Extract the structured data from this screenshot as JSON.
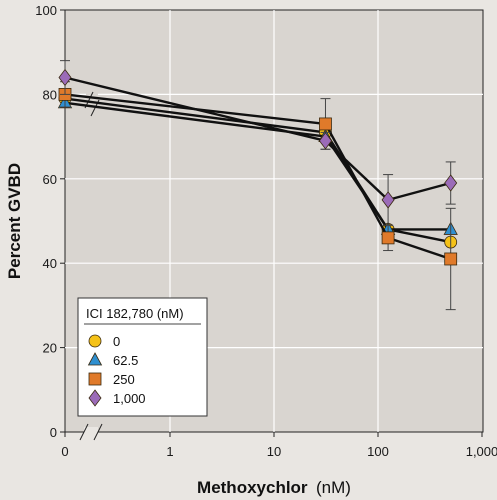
{
  "chart_data": {
    "type": "line",
    "x_axis": {
      "title": "Methoxychlor",
      "unit": "(nM)",
      "scale": "log with break at 0",
      "tick_labels": [
        "0",
        "1",
        "10",
        "100",
        "1,000"
      ],
      "tick_values": [
        0,
        1,
        10,
        100,
        1000
      ]
    },
    "y_axis": {
      "title": "Percent GVBD",
      "range": [
        0,
        100
      ],
      "tick_labels": [
        "0",
        "20",
        "40",
        "60",
        "80",
        "100"
      ],
      "tick_values": [
        0,
        20,
        40,
        60,
        80,
        100
      ]
    },
    "grid": true,
    "legend": {
      "title": "ICI 182,780 (nM)",
      "placement": "bottom-left"
    },
    "x": [
      0,
      31.25,
      125,
      500
    ],
    "series": [
      {
        "name": "0",
        "marker": "circle",
        "color": "#f5c218",
        "values": [
          79,
          71,
          48,
          45
        ],
        "errors": [
          0,
          0,
          0,
          0
        ]
      },
      {
        "name": "62.5",
        "marker": "triangle",
        "color": "#2f8fd0",
        "values": [
          78,
          70,
          48,
          48
        ],
        "errors": [
          0,
          0,
          0,
          0
        ]
      },
      {
        "name": "250",
        "marker": "square",
        "color": "#e07a2a",
        "values": [
          80,
          73,
          46,
          41
        ],
        "errors": [
          3,
          6,
          3,
          12
        ]
      },
      {
        "name": "1,000",
        "marker": "diamond",
        "color": "#9b6bb8",
        "values": [
          84,
          69,
          55,
          59
        ],
        "errors": [
          4,
          2,
          6,
          5
        ]
      }
    ]
  }
}
